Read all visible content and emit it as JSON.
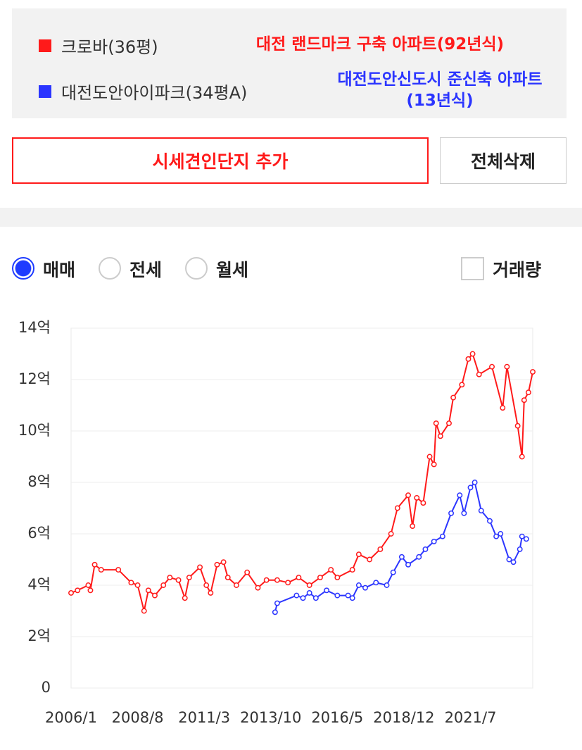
{
  "comparison": {
    "notes": [
      "대전 랜드마크 구축 아파트(92년식)",
      "대전도안신도시 준신축 아파트(13년식)"
    ]
  },
  "buttons": {
    "add": "시세견인단지 추가",
    "delete_all": "전체삭제"
  },
  "trade_type": {
    "options": [
      "매매",
      "전세",
      "월세"
    ],
    "selected": 0
  },
  "volume_checkbox": "거래량",
  "chart_data": {
    "type": "line",
    "ylim": [
      0,
      14
    ],
    "yticks": [
      0,
      {
        "value": 2,
        "label": "2억"
      },
      {
        "value": 4,
        "label": "4억"
      },
      {
        "value": 6,
        "label": "6억"
      },
      {
        "value": 8,
        "label": "8억"
      },
      {
        "value": 10,
        "label": "10억"
      },
      {
        "value": 12,
        "label": "12억"
      },
      {
        "value": 14,
        "label": "14억"
      }
    ],
    "xlim": [
      "2006/1",
      "2023/12"
    ],
    "xticks": [
      "2006/1",
      "2008/8",
      "2011/3",
      "2013/10",
      "2016/5",
      "2018/12",
      "2021/7"
    ],
    "grid": true,
    "series": [
      {
        "name": "크로바(36평)",
        "color": "#ff1a1a",
        "x": [
          "2006/1",
          "2006/4",
          "2006/9",
          "2006/10",
          "2006/12",
          "2007/3",
          "2007/11",
          "2008/5",
          "2008/8",
          "2008/11",
          "2009/1",
          "2009/4",
          "2009/8",
          "2009/11",
          "2010/3",
          "2010/6",
          "2010/8",
          "2011/1",
          "2011/4",
          "2011/6",
          "2011/9",
          "2011/12",
          "2012/2",
          "2012/6",
          "2012/11",
          "2013/4",
          "2013/8",
          "2014/1",
          "2014/6",
          "2014/11",
          "2015/4",
          "2015/9",
          "2016/2",
          "2016/5",
          "2016/12",
          "2017/3",
          "2017/8",
          "2018/1",
          "2018/6",
          "2018/9",
          "2019/2",
          "2019/4",
          "2019/6",
          "2019/9",
          "2019/12",
          "2020/2",
          "2020/3",
          "2020/5",
          "2020/9",
          "2020/11",
          "2021/3",
          "2021/6",
          "2021/8",
          "2021/11",
          "2022/5",
          "2022/10",
          "2022/12",
          "2023/5",
          "2023/7",
          "2023/8",
          "2023/10",
          "2023/12"
        ],
        "values": [
          3.7,
          3.8,
          4.0,
          3.8,
          4.8,
          4.6,
          4.6,
          4.1,
          4.0,
          3.0,
          3.8,
          3.6,
          4.0,
          4.3,
          4.2,
          3.5,
          4.3,
          4.7,
          4.0,
          3.7,
          4.8,
          4.9,
          4.3,
          4.0,
          4.5,
          3.9,
          4.2,
          4.2,
          4.1,
          4.3,
          4.0,
          4.3,
          4.6,
          4.3,
          4.6,
          5.2,
          5.0,
          5.4,
          6.0,
          7.0,
          7.5,
          6.3,
          7.4,
          7.2,
          9.0,
          8.7,
          10.3,
          9.8,
          10.3,
          11.3,
          11.8,
          12.8,
          13.0,
          12.2,
          12.5,
          10.9,
          12.5,
          10.2,
          9.0,
          11.2,
          11.5,
          12.3
        ]
      },
      {
        "name": "대전도안아이파크(34평A)",
        "color": "#2b35ff",
        "x": [
          "2013/12",
          "2014/1",
          "2014/10",
          "2015/1",
          "2015/4",
          "2015/7",
          "2015/12",
          "2016/5",
          "2016/10",
          "2016/12",
          "2017/3",
          "2017/6",
          "2017/11",
          "2018/4",
          "2018/7",
          "2018/11",
          "2019/2",
          "2019/7",
          "2019/10",
          "2020/2",
          "2020/6",
          "2020/10",
          "2021/2",
          "2021/4",
          "2021/7",
          "2021/9",
          "2021/12",
          "2022/4",
          "2022/7",
          "2022/9",
          "2023/1",
          "2023/3",
          "2023/6",
          "2023/7",
          "2023/9"
        ],
        "values": [
          2.95,
          3.3,
          3.6,
          3.5,
          3.7,
          3.5,
          3.8,
          3.6,
          3.6,
          3.5,
          4.0,
          3.9,
          4.1,
          4.0,
          4.5,
          5.1,
          4.8,
          5.1,
          5.4,
          5.7,
          5.9,
          6.8,
          7.5,
          6.8,
          7.8,
          8.0,
          6.9,
          6.5,
          5.9,
          6.0,
          5.0,
          4.9,
          5.4,
          5.9,
          5.8
        ]
      }
    ]
  }
}
